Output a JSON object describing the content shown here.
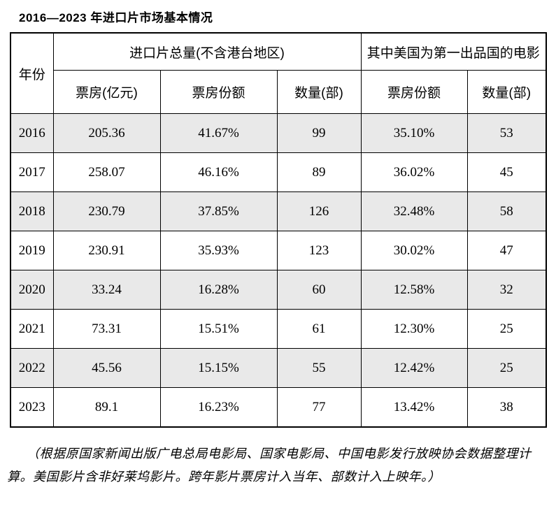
{
  "title": "2016—2023 年进口片市场基本情况",
  "table": {
    "header": {
      "year": "年份",
      "import_total_group": "进口片总量(不含港台地区)",
      "us_first_group": "其中美国为第一出品国的电影",
      "sub": [
        "票房(亿元)",
        "票房份额",
        "数量(部)",
        "票房份额",
        "数量(部)"
      ]
    },
    "rows": [
      [
        "2016",
        "205.36",
        "41.67%",
        "99",
        "35.10%",
        "53"
      ],
      [
        "2017",
        "258.07",
        "46.16%",
        "89",
        "36.02%",
        "45"
      ],
      [
        "2018",
        "230.79",
        "37.85%",
        "126",
        "32.48%",
        "58"
      ],
      [
        "2019",
        "230.91",
        "35.93%",
        "123",
        "30.02%",
        "47"
      ],
      [
        "2020",
        "33.24",
        "16.28%",
        "60",
        "12.58%",
        "32"
      ],
      [
        "2021",
        "73.31",
        "15.51%",
        "61",
        "12.30%",
        "25"
      ],
      [
        "2022",
        "45.56",
        "15.15%",
        "55",
        "12.42%",
        "25"
      ],
      [
        "2023",
        "89.1",
        "16.23%",
        "77",
        "13.42%",
        "38"
      ]
    ],
    "shaded_row_years": [
      "2016",
      "2018",
      "2020",
      "2022"
    ]
  },
  "footnote": "（根据原国家新闻出版广电总局电影局、国家电影局、中国电影发行放映协会数据整理计算。美国影片含非好莱坞影片。跨年影片票房计入当年、部数计入上映年。）",
  "colors": {
    "row_shade": "#e9e9e9",
    "border": "#000000",
    "text": "#000000",
    "background": "#ffffff"
  }
}
